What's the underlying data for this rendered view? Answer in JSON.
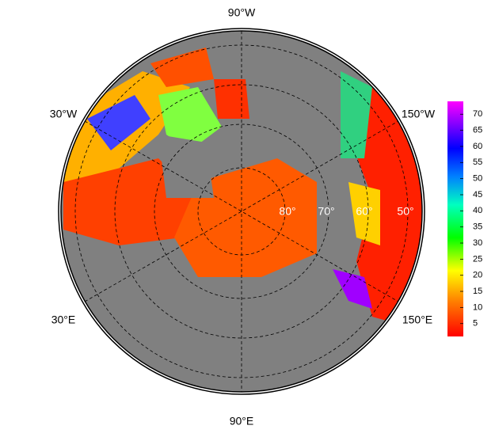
{
  "map": {
    "meridian_labels": [
      "90°W",
      "30°W",
      "150°W",
      "30°E",
      "150°E",
      "90°E"
    ],
    "latitude_labels": [
      "80°",
      "70°",
      "60°",
      "50°"
    ]
  },
  "colorbar": {
    "lim": [
      1,
      74
    ],
    "ticks": [
      5,
      10,
      15,
      20,
      25,
      30,
      35,
      40,
      45,
      50,
      55,
      60,
      65,
      70
    ]
  }
}
